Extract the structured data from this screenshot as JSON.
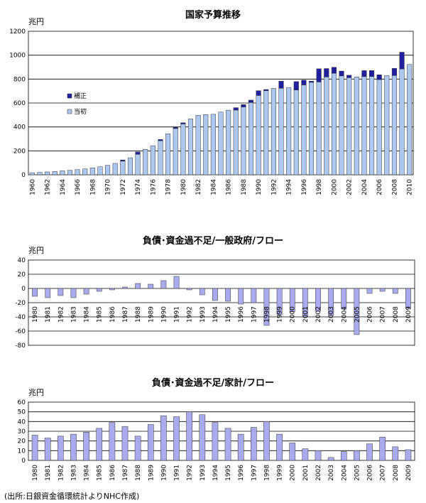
{
  "source_note": "(出所:日銀資金循環統計よりNHC作成)",
  "colors": {
    "initial": "#aac8f0",
    "supplementary": "#1f1fa0",
    "bar": "#aaaaee",
    "edge": "#333333",
    "grid": "#000000"
  },
  "chart_data": [
    {
      "type": "bar",
      "title": "国家予算推移",
      "unit_label": "兆円",
      "stacked": true,
      "ylim": [
        0,
        1200
      ],
      "yticks": [
        0,
        200,
        400,
        600,
        800,
        1000,
        1200
      ],
      "x": [
        1960,
        1961,
        1962,
        1963,
        1964,
        1965,
        1966,
        1967,
        1968,
        1969,
        1970,
        1971,
        1972,
        1973,
        1974,
        1975,
        1976,
        1977,
        1978,
        1979,
        1980,
        1981,
        1982,
        1983,
        1984,
        1985,
        1986,
        1987,
        1988,
        1989,
        1990,
        1991,
        1992,
        1993,
        1994,
        1995,
        1996,
        1997,
        1998,
        1999,
        2000,
        2001,
        2002,
        2003,
        2004,
        2005,
        2006,
        2007,
        2008,
        2009,
        2010
      ],
      "x_tick_labels": [
        "1960",
        "1962",
        "1964",
        "1966",
        "1968",
        "1970",
        "1972",
        "1974",
        "1976",
        "1978",
        "1980",
        "1982",
        "1984",
        "1986",
        "1988",
        "1990",
        "1992",
        "1994",
        "1996",
        "1998",
        "2000",
        "2002",
        "2004",
        "2006",
        "2008",
        "2010"
      ],
      "legend": {
        "placement": "left-middle",
        "entries": [
          "補正",
          "当初"
        ]
      },
      "series": [
        {
          "name": "当初",
          "values": [
            17,
            20,
            24,
            28,
            33,
            37,
            43,
            49,
            58,
            67,
            79,
            95,
            114,
            142,
            171,
            212,
            243,
            285,
            343,
            387,
            425,
            467,
            497,
            503,
            506,
            524,
            540,
            541,
            567,
            604,
            663,
            703,
            722,
            723,
            730,
            709,
            751,
            773,
            776,
            818,
            849,
            827,
            812,
            818,
            821,
            822,
            796,
            829,
            830,
            885,
            922
          ]
        },
        {
          "name": "補正",
          "values": [
            0,
            0,
            0,
            0,
            0,
            0,
            0,
            0,
            0,
            0,
            0,
            0,
            10,
            0,
            20,
            0,
            0,
            10,
            0,
            10,
            10,
            0,
            0,
            0,
            0,
            0,
            0,
            20,
            20,
            20,
            40,
            10,
            0,
            60,
            0,
            70,
            40,
            10,
            110,
            70,
            50,
            40,
            20,
            0,
            50,
            50,
            40,
            0,
            60,
            140,
            0
          ]
        }
      ]
    },
    {
      "type": "bar",
      "title": "負債･資金過不足/一般政府/フロー",
      "unit_label": "兆円",
      "ylim": [
        -80,
        40
      ],
      "yticks": [
        40,
        20,
        0,
        -20,
        -40,
        -60,
        -80
      ],
      "categories": [
        "1980",
        "1981",
        "1982",
        "1983",
        "1984",
        "1985",
        "1986",
        "1987",
        "1988",
        "1989",
        "1990",
        "1991",
        "1992",
        "1993",
        "1994",
        "1995",
        "1996",
        "1997",
        "1998",
        "1999",
        "2000",
        "2001",
        "2002",
        "2003",
        "2004",
        "2005",
        "2006",
        "2007",
        "2008",
        "2009"
      ],
      "values": [
        -11,
        -13,
        -10,
        -13,
        -8,
        -4,
        -2,
        2,
        7,
        6,
        11,
        17,
        -2,
        -9,
        -17,
        -18,
        -22,
        -20,
        -52,
        -37,
        -33,
        -40,
        -32,
        -38,
        -29,
        -65,
        -7,
        -4,
        -7,
        -28
      ]
    },
    {
      "type": "bar",
      "title": "負債･資金過不足/家計/フロー",
      "unit_label": "兆円",
      "ylim": [
        0,
        60
      ],
      "yticks": [
        0,
        10,
        20,
        30,
        40,
        50,
        60
      ],
      "categories": [
        "1980",
        "1981",
        "1982",
        "1983",
        "1984",
        "1985",
        "1986",
        "1987",
        "1988",
        "1989",
        "1990",
        "1991",
        "1992",
        "1993",
        "1994",
        "1995",
        "1996",
        "1997",
        "1998",
        "1999",
        "2000",
        "2001",
        "2002",
        "2003",
        "2004",
        "2005",
        "2006",
        "2007",
        "2008",
        "2009"
      ],
      "values": [
        26,
        23,
        25,
        27,
        29,
        33,
        39,
        35,
        25,
        37,
        46,
        45,
        50,
        47,
        39,
        33,
        27,
        34,
        40,
        27,
        18,
        12,
        10,
        3,
        9,
        10,
        17,
        24,
        14,
        11
      ]
    }
  ]
}
